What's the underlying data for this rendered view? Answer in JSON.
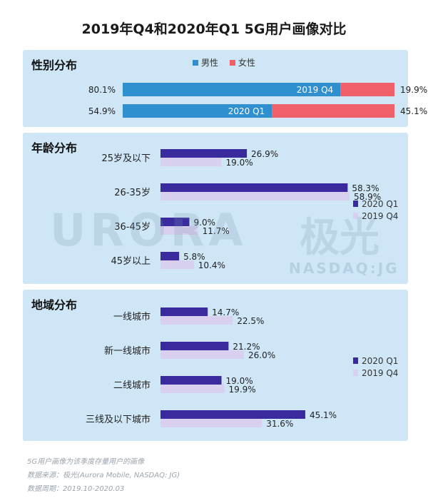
{
  "title": "2019年Q4和2020年Q1 5G用户画像对比",
  "footer": {
    "note": "5G用户画像为该季度存量用户的画像",
    "source": "数据来源：极光(Aurora Mobile, NASDAQ: JG)",
    "period": "数据周期：2019.10-2020.03"
  },
  "watermark": {
    "logo": "URORA",
    "cn": "极光",
    "sub": "NASDAQ:JG"
  },
  "colors": {
    "male": "#2f8fcf",
    "female": "#f0606a",
    "q1_2020": "#3a2a9e",
    "q4_2019": "#d9d0f0",
    "panel": "#cfe6f7"
  },
  "chart_data": [
    {
      "type": "bar",
      "title": "性别分布",
      "stacked": true,
      "legend": [
        "男性",
        "女性"
      ],
      "categories": [
        "2019 Q4",
        "2020 Q1"
      ],
      "series": [
        {
          "name": "男性",
          "values": [
            80.1,
            54.9
          ],
          "labels": [
            "80.1%",
            "54.9%"
          ]
        },
        {
          "name": "女性",
          "values": [
            19.9,
            45.1
          ],
          "labels": [
            "19.9%",
            "45.1%"
          ]
        }
      ]
    },
    {
      "type": "bar",
      "title": "年龄分布",
      "legend": [
        "2020 Q1",
        "2019 Q4"
      ],
      "categories": [
        "25岁及以下",
        "26-35岁",
        "36-45岁",
        "45岁以上"
      ],
      "series": [
        {
          "name": "2020 Q1",
          "values": [
            26.9,
            58.3,
            9.0,
            5.8
          ],
          "labels": [
            "26.9%",
            "58.3%",
            "9.0%",
            "5.8%"
          ]
        },
        {
          "name": "2019 Q4",
          "values": [
            19.0,
            58.9,
            11.7,
            10.4
          ],
          "labels": [
            "19.0%",
            "58.9%",
            "11.7%",
            "10.4%"
          ]
        }
      ]
    },
    {
      "type": "bar",
      "title": "地域分布",
      "legend": [
        "2020 Q1",
        "2019 Q4"
      ],
      "categories": [
        "一线城市",
        "新一线城市",
        "二线城市",
        "三线及以下城市"
      ],
      "series": [
        {
          "name": "2020 Q1",
          "values": [
            14.7,
            21.2,
            19.0,
            45.1
          ],
          "labels": [
            "14.7%",
            "21.2%",
            "19.0%",
            "45.1%"
          ]
        },
        {
          "name": "2019 Q4",
          "values": [
            22.5,
            26.0,
            19.9,
            31.6
          ],
          "labels": [
            "22.5%",
            "26.0%",
            "19.9%",
            "31.6%"
          ]
        }
      ]
    }
  ]
}
